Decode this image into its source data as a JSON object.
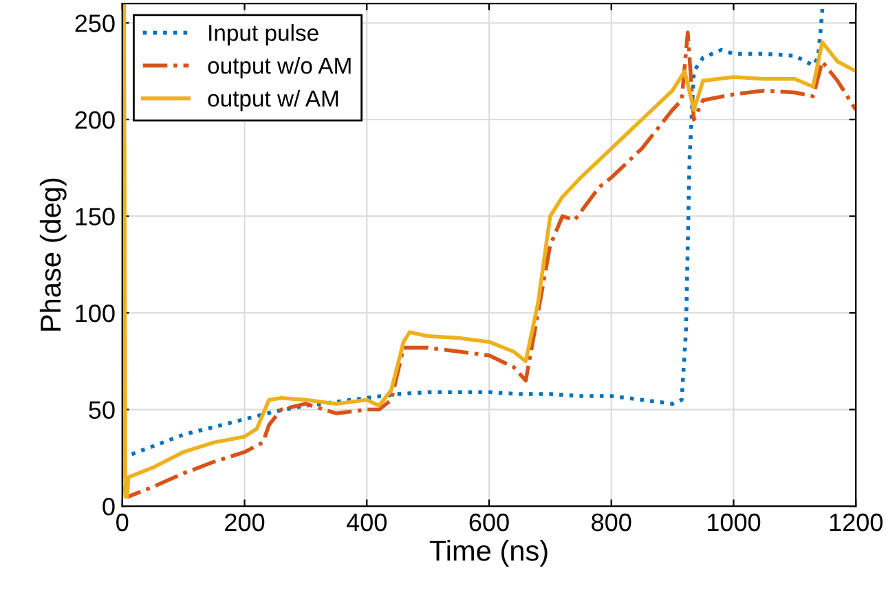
{
  "chart_data": {
    "type": "line",
    "xlabel": "Time (ns)",
    "ylabel": "Phase (deg)",
    "xlim": [
      0,
      1200
    ],
    "ylim": [
      0,
      260
    ],
    "xticks": [
      0,
      200,
      400,
      600,
      800,
      1000,
      1200
    ],
    "yticks": [
      0,
      50,
      100,
      150,
      200,
      250
    ],
    "grid": true,
    "legend": "top left",
    "marker": "none",
    "series": [
      {
        "name": "Input pulse",
        "color": "#0072bd",
        "line_style": "dotted",
        "x": [
          0,
          50,
          100,
          150,
          200,
          250,
          300,
          350,
          400,
          450,
          500,
          550,
          600,
          650,
          700,
          750,
          800,
          850,
          900,
          915,
          922,
          928,
          935,
          950,
          980,
          1000,
          1050,
          1100,
          1130,
          1138,
          1142,
          1146
        ],
        "values": [
          25,
          31,
          37,
          41,
          45,
          49,
          52,
          54,
          56,
          58,
          59,
          59,
          59,
          58,
          58,
          57,
          57,
          55,
          53,
          55,
          90,
          180,
          225,
          232,
          236,
          234,
          234,
          233,
          228,
          232,
          245,
          260
        ]
      },
      {
        "name": "output w/o AM",
        "color": "#d95319",
        "line_style": "dashdot",
        "x": [
          0,
          10,
          50,
          100,
          150,
          200,
          230,
          240,
          260,
          300,
          350,
          400,
          420,
          440,
          460,
          500,
          550,
          600,
          640,
          660,
          680,
          700,
          720,
          740,
          780,
          800,
          850,
          900,
          915,
          925,
          935,
          950,
          1000,
          1050,
          1100,
          1130,
          1145,
          1170,
          1200
        ],
        "values": [
          10,
          5,
          10,
          17,
          23,
          28,
          33,
          42,
          50,
          53,
          48,
          50,
          50,
          55,
          82,
          82,
          80,
          78,
          72,
          65,
          100,
          135,
          150,
          148,
          165,
          170,
          185,
          205,
          210,
          245,
          200,
          210,
          213,
          215,
          214,
          212,
          230,
          220,
          205
        ]
      },
      {
        "name": "output w/ AM",
        "color": "#edb120",
        "line_style": "solid",
        "x": [
          0,
          3,
          5,
          8,
          10,
          50,
          100,
          150,
          200,
          220,
          240,
          260,
          300,
          350,
          400,
          420,
          440,
          460,
          470,
          500,
          550,
          600,
          640,
          660,
          680,
          700,
          720,
          750,
          800,
          850,
          900,
          920,
          935,
          950,
          1000,
          1050,
          1100,
          1130,
          1145,
          1170,
          1200
        ],
        "values": [
          15,
          260,
          5,
          5,
          15,
          20,
          28,
          33,
          36,
          40,
          55,
          56,
          55,
          53,
          55,
          52,
          60,
          85,
          90,
          88,
          87,
          85,
          80,
          75,
          105,
          150,
          160,
          170,
          185,
          200,
          215,
          225,
          205,
          220,
          222,
          221,
          221,
          217,
          240,
          230,
          225
        ]
      }
    ]
  }
}
